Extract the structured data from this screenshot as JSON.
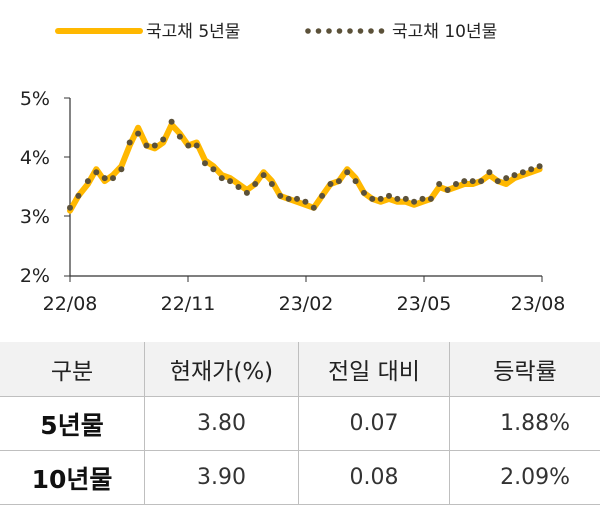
{
  "chart_data": {
    "type": "line",
    "title": "",
    "xlabel": "",
    "ylabel": "",
    "x_ticks": [
      "22/08",
      "22/11",
      "23/02",
      "23/05",
      "23/08"
    ],
    "y_ticks": [
      "2%",
      "3%",
      "4%",
      "5%"
    ],
    "ylim": [
      2,
      5
    ],
    "xlim": [
      "2022-08-01",
      "2023-08-31"
    ],
    "grid": false,
    "legend_position": "top",
    "series": [
      {
        "name": "국고채 5년물",
        "color": "#FFB800",
        "style": "solid",
        "x": [
          "2022-08-01",
          "2022-08-08",
          "2022-08-16",
          "2022-08-23",
          "2022-08-30",
          "2022-09-06",
          "2022-09-13",
          "2022-09-20",
          "2022-09-27",
          "2022-10-04",
          "2022-10-11",
          "2022-10-18",
          "2022-10-25",
          "2022-11-01",
          "2022-11-08",
          "2022-11-15",
          "2022-11-22",
          "2022-11-29",
          "2022-12-06",
          "2022-12-13",
          "2022-12-20",
          "2022-12-27",
          "2023-01-03",
          "2023-01-10",
          "2023-01-17",
          "2023-01-24",
          "2023-01-31",
          "2023-02-07",
          "2023-02-14",
          "2023-02-21",
          "2023-02-28",
          "2023-03-07",
          "2023-03-14",
          "2023-03-21",
          "2023-03-28",
          "2023-04-04",
          "2023-04-11",
          "2023-04-18",
          "2023-04-25",
          "2023-05-02",
          "2023-05-09",
          "2023-05-16",
          "2023-05-23",
          "2023-05-30",
          "2023-06-06",
          "2023-06-13",
          "2023-06-20",
          "2023-06-27",
          "2023-07-04",
          "2023-07-11",
          "2023-07-18",
          "2023-07-25",
          "2023-08-01",
          "2023-08-08",
          "2023-08-15",
          "2023-08-22",
          "2023-08-29"
        ],
        "values": [
          3.1,
          3.35,
          3.55,
          3.8,
          3.6,
          3.7,
          3.85,
          4.2,
          4.5,
          4.2,
          4.15,
          4.25,
          4.55,
          4.4,
          4.2,
          4.25,
          3.95,
          3.85,
          3.7,
          3.65,
          3.55,
          3.45,
          3.55,
          3.75,
          3.6,
          3.35,
          3.3,
          3.25,
          3.2,
          3.15,
          3.35,
          3.55,
          3.6,
          3.8,
          3.65,
          3.4,
          3.3,
          3.25,
          3.3,
          3.25,
          3.25,
          3.2,
          3.25,
          3.3,
          3.5,
          3.45,
          3.5,
          3.55,
          3.55,
          3.6,
          3.7,
          3.6,
          3.55,
          3.65,
          3.7,
          3.75,
          3.8
        ]
      },
      {
        "name": "국고채 10년물",
        "color": "#5B5139",
        "style": "dotted",
        "x": [
          "2022-08-01",
          "2022-08-08",
          "2022-08-16",
          "2022-08-23",
          "2022-08-30",
          "2022-09-06",
          "2022-09-13",
          "2022-09-20",
          "2022-09-27",
          "2022-10-04",
          "2022-10-11",
          "2022-10-18",
          "2022-10-25",
          "2022-11-01",
          "2022-11-08",
          "2022-11-15",
          "2022-11-22",
          "2022-11-29",
          "2022-12-06",
          "2022-12-13",
          "2022-12-20",
          "2022-12-27",
          "2023-01-03",
          "2023-01-10",
          "2023-01-17",
          "2023-01-24",
          "2023-01-31",
          "2023-02-07",
          "2023-02-14",
          "2023-02-21",
          "2023-02-28",
          "2023-03-07",
          "2023-03-14",
          "2023-03-21",
          "2023-03-28",
          "2023-04-04",
          "2023-04-11",
          "2023-04-18",
          "2023-04-25",
          "2023-05-02",
          "2023-05-09",
          "2023-05-16",
          "2023-05-23",
          "2023-05-30",
          "2023-06-06",
          "2023-06-13",
          "2023-06-20",
          "2023-06-27",
          "2023-07-04",
          "2023-07-11",
          "2023-07-18",
          "2023-07-25",
          "2023-08-01",
          "2023-08-08",
          "2023-08-15",
          "2023-08-22",
          "2023-08-29"
        ],
        "values": [
          3.15,
          3.35,
          3.6,
          3.75,
          3.65,
          3.65,
          3.8,
          4.25,
          4.4,
          4.2,
          4.2,
          4.3,
          4.6,
          4.35,
          4.2,
          4.2,
          3.9,
          3.8,
          3.65,
          3.6,
          3.5,
          3.4,
          3.55,
          3.7,
          3.55,
          3.35,
          3.3,
          3.3,
          3.25,
          3.15,
          3.35,
          3.55,
          3.6,
          3.75,
          3.6,
          3.4,
          3.3,
          3.3,
          3.35,
          3.3,
          3.3,
          3.25,
          3.3,
          3.3,
          3.55,
          3.45,
          3.55,
          3.6,
          3.6,
          3.6,
          3.75,
          3.6,
          3.65,
          3.7,
          3.75,
          3.8,
          3.85
        ]
      }
    ]
  },
  "table": {
    "headers": [
      "구분",
      "현재가(%)",
      "전일 대비",
      "등락률"
    ],
    "rows": [
      {
        "name": "5년물",
        "price": "3.80",
        "change": "0.07",
        "rate": "1.88%"
      },
      {
        "name": "10년물",
        "price": "3.90",
        "change": "0.08",
        "rate": "2.09%"
      }
    ]
  }
}
